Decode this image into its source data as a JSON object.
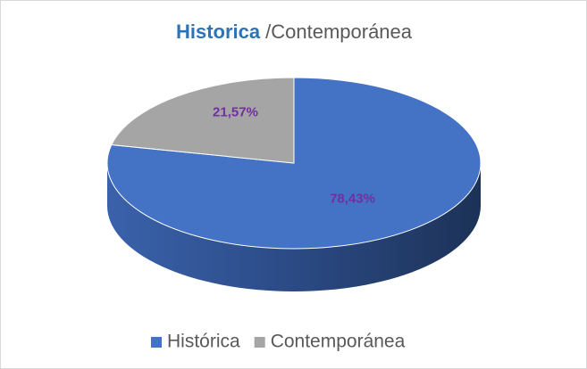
{
  "chart_data": {
    "type": "pie3d",
    "title": "Historica",
    "title_suffix": "/Contemporánea",
    "categories": [
      "Histórica",
      "Contemporánea"
    ],
    "values": [
      78.43,
      21.57
    ],
    "value_labels": [
      "78,43%",
      "21,57%"
    ],
    "colors": [
      "#4472c4",
      "#a5a5a5"
    ],
    "label_color": "#7030a0",
    "legend": "bottom"
  }
}
